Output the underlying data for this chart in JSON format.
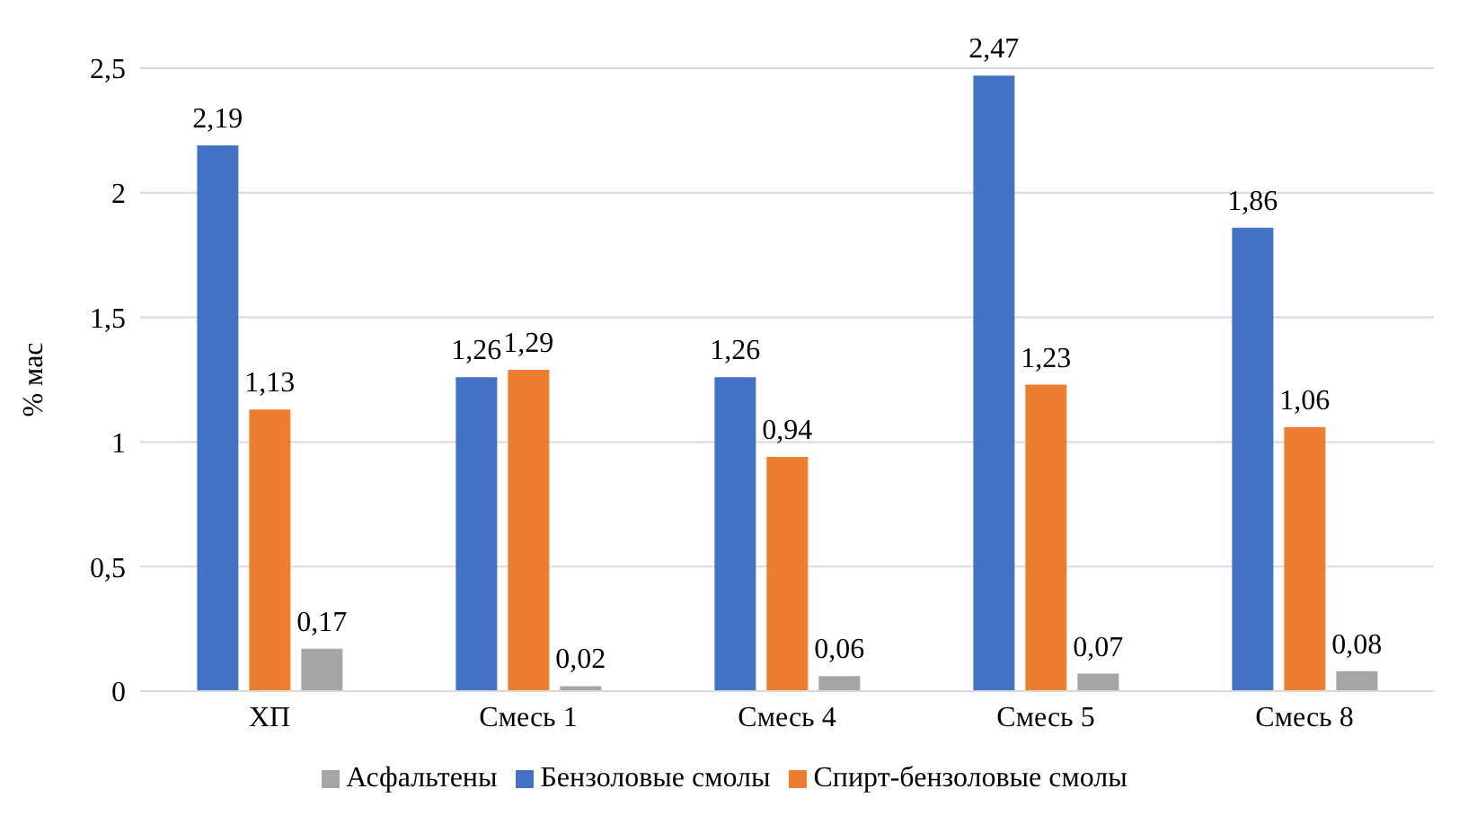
{
  "chart_data": {
    "type": "bar",
    "ylabel": "% мас",
    "categories": [
      "ХП",
      "Смесь 1",
      "Смесь 4",
      "Смесь 5",
      "Смесь 8"
    ],
    "series": [
      {
        "name": "Бензоловые смолы",
        "color": "#4472c4",
        "values": [
          2.19,
          1.26,
          1.26,
          2.47,
          1.86
        ],
        "value_labels": [
          "2,19",
          "1,26",
          "1,26",
          "2,47",
          "1,86"
        ]
      },
      {
        "name": "Спирт-бензоловые смолы",
        "color": "#ed7d31",
        "values": [
          1.13,
          1.29,
          0.94,
          1.23,
          1.06
        ],
        "value_labels": [
          "1,13",
          "1,29",
          "0,94",
          "1,23",
          "1,06"
        ]
      },
      {
        "name": "Асфальтены",
        "color": "#a5a5a5",
        "values": [
          0.17,
          0.02,
          0.06,
          0.07,
          0.08
        ],
        "value_labels": [
          "0,17",
          "0,02",
          "0,06",
          "0,07",
          "0,08"
        ]
      }
    ],
    "ylim": [
      0,
      2.5
    ],
    "yticks": [
      {
        "value": 0,
        "label": "0"
      },
      {
        "value": 0.5,
        "label": "0,5"
      },
      {
        "value": 1,
        "label": "1"
      },
      {
        "value": 1.5,
        "label": "1,5"
      },
      {
        "value": 2,
        "label": "2"
      },
      {
        "value": 2.5,
        "label": "2,5"
      }
    ],
    "grid": "y",
    "legend": "bottom"
  }
}
